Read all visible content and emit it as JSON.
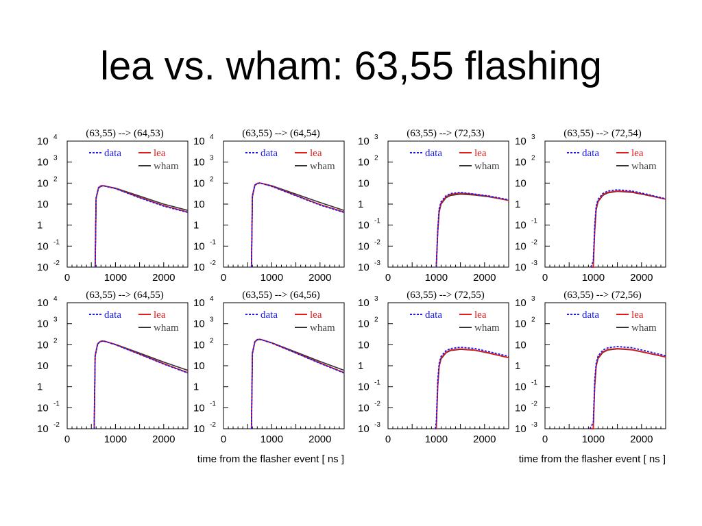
{
  "slide": {
    "title": "lea vs. wham: 63,55 flashing"
  },
  "colors": {
    "data": "#1a1aee",
    "lea": "#e11a1a",
    "wham": "#333333",
    "frame": "#000000"
  },
  "chart_data": {
    "type": "line",
    "layout": "grid 2x4",
    "xlabel": "time from the flasher event [ ns ]",
    "xlim": [
      0,
      2500
    ],
    "x_ticks": [
      "0",
      "1000",
      "2000"
    ],
    "yscale": "log",
    "legend": {
      "placement": "top-right",
      "entries": [
        "data",
        "lea",
        "wham"
      ]
    },
    "grid": false,
    "panels": [
      {
        "title": "(63,55) --> (64,53)",
        "ylim": [
          0.01,
          10000
        ],
        "y_ticks": [
          {
            "base": "10",
            "exp": "4"
          },
          {
            "base": "10",
            "exp": "3"
          },
          {
            "base": "10",
            "exp": "2"
          },
          {
            "base": "10",
            "exp": ""
          },
          {
            "base": "1",
            "exp": ""
          },
          {
            "base": "10",
            "exp": "-1"
          },
          {
            "base": "10",
            "exp": "-2"
          }
        ],
        "x": [
          580,
          600,
          650,
          700,
          750,
          800,
          1000,
          1500,
          2000,
          2500
        ],
        "series": [
          {
            "name": "data",
            "values": [
              0.01,
              20,
              60,
              72,
              75,
              70,
              55,
              20,
              8,
              4
            ]
          },
          {
            "name": "lea",
            "values": [
              0.01,
              20,
              62,
              74,
              76,
              71,
              56,
              21,
              8.5,
              4.2
            ]
          },
          {
            "name": "wham",
            "values": [
              0.01,
              18,
              58,
              70,
              74,
              70,
              58,
              24,
              10,
              5
            ]
          }
        ]
      },
      {
        "title": "(63,55) --> (64,54)",
        "ylim": [
          0.01,
          10000
        ],
        "y_ticks": [
          {
            "base": "10",
            "exp": "4"
          },
          {
            "base": "10",
            "exp": "3"
          },
          {
            "base": "10",
            "exp": "2"
          },
          {
            "base": "10",
            "exp": ""
          },
          {
            "base": "1",
            "exp": ""
          },
          {
            "base": "10",
            "exp": "-1"
          },
          {
            "base": "10",
            "exp": "-2"
          }
        ],
        "x": [
          580,
          600,
          650,
          700,
          750,
          800,
          1000,
          1500,
          2000,
          2500
        ],
        "series": [
          {
            "name": "data",
            "values": [
              0.01,
              25,
              80,
              95,
              100,
              95,
              70,
              25,
              9,
              4
            ]
          },
          {
            "name": "lea",
            "values": [
              0.01,
              25,
              82,
              97,
              102,
              96,
              72,
              26,
              9.5,
              4.2
            ]
          },
          {
            "name": "wham",
            "values": [
              0.01,
              22,
              78,
              94,
              100,
              96,
              75,
              30,
              12,
              5
            ]
          }
        ]
      },
      {
        "title": "(63,55) --> (72,53)",
        "ylim": [
          0.001,
          1000
        ],
        "y_ticks": [
          {
            "base": "10",
            "exp": "3"
          },
          {
            "base": "10",
            "exp": "2"
          },
          {
            "base": "10",
            "exp": ""
          },
          {
            "base": "1",
            "exp": ""
          },
          {
            "base": "10",
            "exp": "-1"
          },
          {
            "base": "10",
            "exp": "-2"
          },
          {
            "base": "10",
            "exp": "-3"
          }
        ],
        "x": [
          1000,
          1030,
          1060,
          1100,
          1200,
          1300,
          1500,
          1800,
          2100,
          2500
        ],
        "series": [
          {
            "name": "data",
            "values": [
              0.001,
              0.06,
              0.6,
              1.3,
              2.5,
              3.2,
              3.6,
              3.0,
              2.4,
              1.6
            ]
          },
          {
            "name": "lea",
            "values": [
              0.001,
              0.05,
              0.5,
              1.1,
              2.2,
              2.9,
              3.3,
              2.9,
              2.3,
              1.5
            ]
          },
          {
            "name": "wham",
            "values": [
              0.001,
              0.04,
              0.4,
              1.0,
              2.0,
              2.6,
              3.0,
              2.7,
              2.2,
              1.5
            ]
          }
        ]
      },
      {
        "title": "(63,55) --> (72,54)",
        "ylim": [
          0.001,
          1000
        ],
        "y_ticks": [
          {
            "base": "10",
            "exp": "3"
          },
          {
            "base": "10",
            "exp": "2"
          },
          {
            "base": "10",
            "exp": ""
          },
          {
            "base": "1",
            "exp": ""
          },
          {
            "base": "10",
            "exp": "-1"
          },
          {
            "base": "10",
            "exp": "-2"
          },
          {
            "base": "10",
            "exp": "-3"
          }
        ],
        "x": [
          950,
          1000,
          1030,
          1060,
          1100,
          1200,
          1300,
          1500,
          1800,
          2100,
          2500
        ],
        "series": [
          {
            "name": "data",
            "values": [
              0.001,
              0.002,
              0.1,
              0.8,
              1.7,
              3.2,
              4.2,
              4.8,
              4.2,
              3.0,
              1.8
            ]
          },
          {
            "name": "lea",
            "values": [
              0.001,
              0.001,
              0.05,
              0.6,
              1.4,
              2.8,
              3.6,
              4.2,
              3.8,
              2.8,
              1.7
            ]
          },
          {
            "name": "wham",
            "values": [
              0.001,
              0.001,
              0.05,
              0.5,
              1.3,
              2.6,
              3.4,
              4.0,
              3.6,
              2.7,
              1.7
            ]
          }
        ]
      },
      {
        "title": "(63,55) --> (64,55)",
        "ylim": [
          0.01,
          10000
        ],
        "y_ticks": [
          {
            "base": "10",
            "exp": "4"
          },
          {
            "base": "10",
            "exp": "3"
          },
          {
            "base": "10",
            "exp": "2"
          },
          {
            "base": "10",
            "exp": ""
          },
          {
            "base": "1",
            "exp": ""
          },
          {
            "base": "10",
            "exp": "-1"
          },
          {
            "base": "10",
            "exp": "-2"
          }
        ],
        "x": [
          560,
          580,
          630,
          680,
          730,
          780,
          1000,
          1500,
          2000,
          2500
        ],
        "series": [
          {
            "name": "data",
            "values": [
              0.01,
              30,
              110,
              140,
              150,
              145,
              100,
              35,
              12,
              4.5
            ]
          },
          {
            "name": "lea",
            "values": [
              0.01,
              30,
              112,
              142,
              152,
              146,
              102,
              36,
              12.5,
              4.7
            ]
          },
          {
            "name": "wham",
            "values": [
              0.01,
              28,
              105,
              138,
              148,
              145,
              105,
              40,
              15,
              6
            ]
          }
        ]
      },
      {
        "title": "(63,55) --> (64,56)",
        "ylim": [
          0.01,
          10000
        ],
        "y_ticks": [
          {
            "base": "10",
            "exp": "4"
          },
          {
            "base": "10",
            "exp": "3"
          },
          {
            "base": "10",
            "exp": "2"
          },
          {
            "base": "10",
            "exp": ""
          },
          {
            "base": "1",
            "exp": ""
          },
          {
            "base": "10",
            "exp": "-1"
          },
          {
            "base": "10",
            "exp": "-2"
          }
        ],
        "x": [
          580,
          600,
          650,
          700,
          750,
          800,
          1000,
          1500,
          2000,
          2500
        ],
        "series": [
          {
            "name": "data",
            "values": [
              0.01,
              40,
              140,
              175,
              180,
              170,
              120,
              40,
              13,
              4.5
            ]
          },
          {
            "name": "lea",
            "values": [
              0.01,
              40,
              142,
              177,
              182,
              172,
              122,
              41,
              13.5,
              4.7
            ]
          },
          {
            "name": "wham",
            "values": [
              0.01,
              36,
              135,
              170,
              178,
              170,
              125,
              45,
              16,
              6
            ]
          }
        ]
      },
      {
        "title": "(63,55) --> (72,55)",
        "ylim": [
          0.001,
          1000
        ],
        "y_ticks": [
          {
            "base": "10",
            "exp": "3"
          },
          {
            "base": "10",
            "exp": "2"
          },
          {
            "base": "10",
            "exp": ""
          },
          {
            "base": "1",
            "exp": ""
          },
          {
            "base": "10",
            "exp": "-1"
          },
          {
            "base": "10",
            "exp": "-2"
          },
          {
            "base": "10",
            "exp": "-3"
          }
        ],
        "x": [
          980,
          1000,
          1030,
          1060,
          1100,
          1200,
          1300,
          1500,
          1800,
          2100,
          2500
        ],
        "series": [
          {
            "name": "data",
            "values": [
              0.001,
              0.002,
              0.2,
              1.3,
              2.8,
              5.2,
              6.6,
              7.6,
              6.6,
              4.6,
              2.8
            ]
          },
          {
            "name": "lea",
            "values": [
              0.001,
              0.001,
              0.1,
              1.0,
              2.3,
              4.4,
              5.6,
              6.3,
              5.6,
              4.0,
              2.4
            ]
          },
          {
            "name": "wham",
            "values": [
              0.001,
              0.001,
              0.1,
              0.9,
              2.1,
              4.1,
              5.3,
              6.0,
              5.4,
              3.9,
              2.4
            ]
          }
        ]
      },
      {
        "title": "(63,55) --> (72,56)",
        "ylim": [
          0.001,
          1000
        ],
        "y_ticks": [
          {
            "base": "10",
            "exp": "3"
          },
          {
            "base": "10",
            "exp": "2"
          },
          {
            "base": "10",
            "exp": ""
          },
          {
            "base": "1",
            "exp": ""
          },
          {
            "base": "10",
            "exp": "-1"
          },
          {
            "base": "10",
            "exp": "-2"
          },
          {
            "base": "10",
            "exp": "-3"
          }
        ],
        "x": [
          930,
          1000,
          1030,
          1060,
          1100,
          1200,
          1300,
          1500,
          1800,
          2100,
          2500
        ],
        "series": [
          {
            "name": "data",
            "values": [
              0.001,
              0.002,
              0.2,
              1.3,
              2.9,
              5.6,
              7.1,
              8.2,
              7.2,
              5.0,
              3.0
            ]
          },
          {
            "name": "lea",
            "values": [
              0.001,
              0.001,
              0.1,
              1.0,
              2.4,
              4.6,
              5.9,
              6.6,
              5.9,
              4.2,
              2.6
            ]
          },
          {
            "name": "wham",
            "values": [
              0.001,
              0.001,
              0.1,
              0.9,
              2.2,
              4.3,
              5.6,
              6.3,
              5.7,
              4.1,
              2.6
            ]
          }
        ]
      }
    ]
  }
}
